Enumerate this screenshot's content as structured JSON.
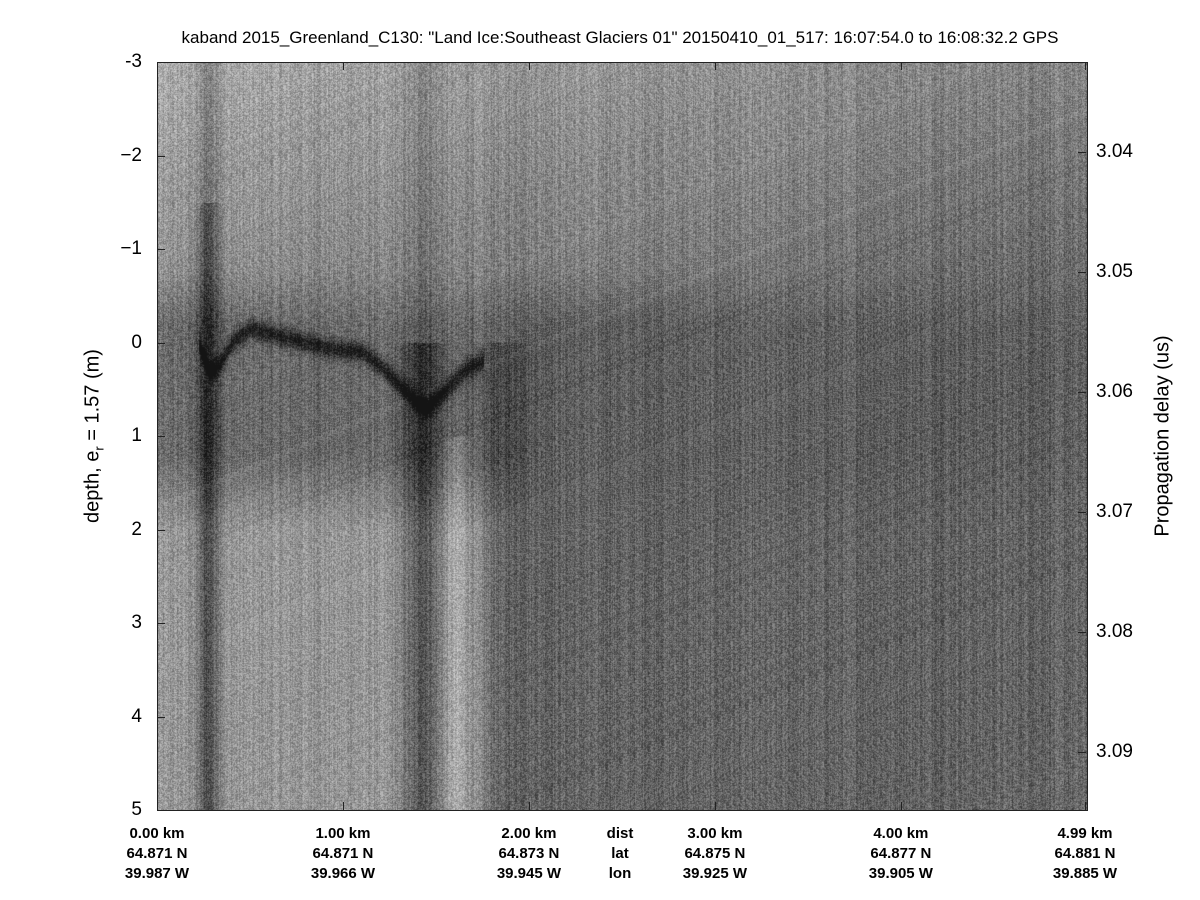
{
  "chart_data": {
    "type": "heatmap",
    "title": "kaband 2015_Greenland_C130: \"Land Ice:Southeast Glaciers 01\"  20150410_01_517: 16:07:54.0 to 16:08:32.2 GPS",
    "ylabel": "depth, e_r = 1.57 (m)",
    "ylabel_parts": {
      "main": "depth, e",
      "sub": "r",
      "rest": " = 1.57 (m)"
    },
    "y2label": "Propagation delay (us)",
    "ylim": [
      -3,
      5
    ],
    "y_ticks": [
      "-3",
      "−2",
      "−1",
      "0",
      "1",
      "2",
      "3",
      "4",
      "5"
    ],
    "y2_ticks": [
      "3.04",
      "3.05",
      "3.06",
      "3.07",
      "3.08",
      "3.09"
    ],
    "y2_tick_values": [
      3.04,
      3.05,
      3.06,
      3.07,
      3.08,
      3.09
    ],
    "xlim_km": [
      0,
      4.99
    ],
    "colormap": "gray",
    "x_labels": [
      {
        "dist": "0.00 km",
        "lat": "64.871 N",
        "lon": "39.987 W",
        "km": 0
      },
      {
        "dist": "1.00 km",
        "lat": "64.871 N",
        "lon": "39.966 W",
        "km": 1
      },
      {
        "dist": "2.00 km",
        "lat": "64.873 N",
        "lon": "39.945 W",
        "km": 2
      },
      {
        "dist": "3.00 km",
        "lat": "64.875 N",
        "lon": "39.925 W",
        "km": 3
      },
      {
        "dist": "4.00 km",
        "lat": "64.877 N",
        "lon": "39.905 W",
        "km": 4
      },
      {
        "dist": "4.99 km",
        "lat": "64.881 N",
        "lon": "39.885 W",
        "km": 4.99
      }
    ],
    "row_labels": {
      "dist": "dist",
      "lat": "lat",
      "lon": "lon"
    },
    "surface_trace": {
      "km": [
        0.22,
        0.28,
        0.33,
        0.4,
        0.5,
        0.7,
        0.9,
        1.1,
        1.2,
        1.3,
        1.4,
        1.45,
        1.55,
        1.65,
        1.75
      ],
      "depth_m": [
        0.0,
        0.3,
        0.25,
        0.0,
        -0.15,
        -0.05,
        0.05,
        0.1,
        0.25,
        0.45,
        0.65,
        0.7,
        0.5,
        0.3,
        0.2
      ]
    }
  }
}
